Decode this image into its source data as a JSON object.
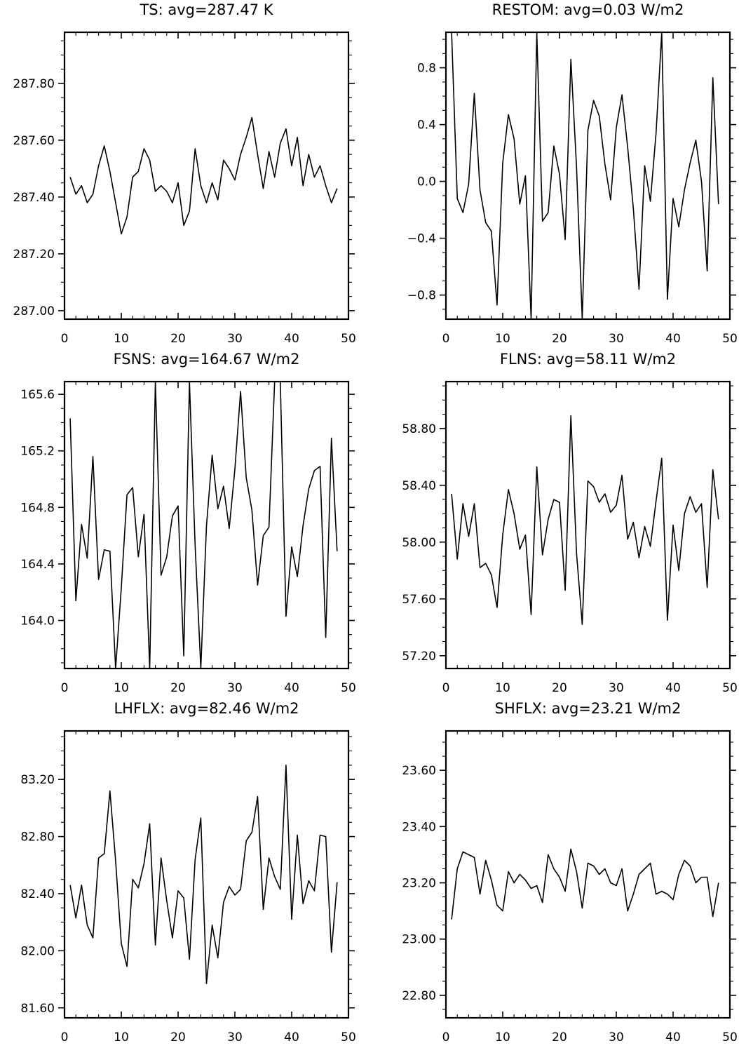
{
  "chart_data": [
    {
      "type": "line",
      "title": "TS: avg=287.47 K",
      "xlim": [
        0,
        50
      ],
      "ylim": [
        286.97,
        287.98
      ],
      "xticks": [
        0,
        10,
        20,
        30,
        40,
        50
      ],
      "xtick_labels": [
        "0",
        "10",
        "20",
        "30",
        "40",
        "50"
      ],
      "yticks": [
        287.0,
        287.2,
        287.4,
        287.6,
        287.8
      ],
      "ytick_labels": [
        "287.00",
        "287.20",
        "287.40",
        "287.60",
        "287.80"
      ],
      "x": [
        1,
        2,
        3,
        4,
        5,
        6,
        7,
        8,
        9,
        10,
        11,
        12,
        13,
        14,
        15,
        16,
        17,
        18,
        19,
        20,
        21,
        22,
        23,
        24,
        25,
        26,
        27,
        28,
        29,
        30,
        31,
        32,
        33,
        34,
        35,
        36,
        37,
        38,
        39,
        40,
        41,
        42,
        43,
        44,
        45,
        46,
        47,
        48
      ],
      "values": [
        287.47,
        287.41,
        287.44,
        287.38,
        287.41,
        287.51,
        287.58,
        287.49,
        287.38,
        287.27,
        287.33,
        287.47,
        287.49,
        287.57,
        287.53,
        287.42,
        287.44,
        287.42,
        287.38,
        287.45,
        287.3,
        287.35,
        287.57,
        287.44,
        287.38,
        287.45,
        287.39,
        287.53,
        287.5,
        287.46,
        287.55,
        287.61,
        287.68,
        287.55,
        287.43,
        287.56,
        287.47,
        287.59,
        287.64,
        287.51,
        287.61,
        287.44,
        287.55,
        287.47,
        287.51,
        287.44,
        287.38,
        287.43
      ]
    },
    {
      "type": "line",
      "title": "RESTOM: avg=0.03 W/m2",
      "xlim": [
        0,
        50
      ],
      "ylim": [
        -0.97,
        1.05
      ],
      "xticks": [
        0,
        10,
        20,
        30,
        40,
        50
      ],
      "xtick_labels": [
        "0",
        "10",
        "20",
        "30",
        "40",
        "50"
      ],
      "yticks": [
        -0.8,
        -0.4,
        0.0,
        0.4,
        0.8
      ],
      "ytick_labels": [
        "−0.8",
        "−0.4",
        "0.0",
        "0.4",
        "0.8"
      ],
      "x": [
        1,
        2,
        3,
        4,
        5,
        6,
        7,
        8,
        9,
        10,
        11,
        12,
        13,
        14,
        15,
        16,
        17,
        18,
        19,
        20,
        21,
        22,
        23,
        24,
        25,
        26,
        27,
        28,
        29,
        30,
        31,
        32,
        33,
        34,
        35,
        36,
        37,
        38,
        39,
        40,
        41,
        42,
        43,
        44,
        45,
        46,
        47,
        48
      ],
      "values": [
        1.05,
        -0.12,
        -0.22,
        -0.02,
        0.62,
        -0.06,
        -0.29,
        -0.35,
        -0.87,
        0.13,
        0.47,
        0.3,
        -0.16,
        0.04,
        -0.97,
        1.05,
        -0.28,
        -0.22,
        0.25,
        0.05,
        -0.41,
        0.86,
        0.1,
        -0.97,
        0.36,
        0.57,
        0.46,
        0.12,
        -0.13,
        0.38,
        0.61,
        0.24,
        -0.19,
        -0.76,
        0.11,
        -0.14,
        0.34,
        1.05,
        -0.83,
        -0.12,
        -0.32,
        -0.06,
        0.13,
        0.29,
        0.0,
        -0.63,
        0.73,
        -0.16
      ]
    },
    {
      "type": "line",
      "title": "FSNS: avg=164.67 W/m2",
      "xlim": [
        0,
        50
      ],
      "ylim": [
        163.66,
        165.69
      ],
      "xticks": [
        0,
        10,
        20,
        30,
        40,
        50
      ],
      "xtick_labels": [
        "0",
        "10",
        "20",
        "30",
        "40",
        "50"
      ],
      "yticks": [
        164.0,
        164.4,
        164.8,
        165.2,
        165.6
      ],
      "ytick_labels": [
        "164.0",
        "164.4",
        "164.8",
        "165.2",
        "165.6"
      ],
      "x": [
        1,
        2,
        3,
        4,
        5,
        6,
        7,
        8,
        9,
        10,
        11,
        12,
        13,
        14,
        15,
        16,
        17,
        18,
        19,
        20,
        21,
        22,
        23,
        24,
        25,
        26,
        27,
        28,
        29,
        30,
        31,
        32,
        33,
        34,
        35,
        36,
        37,
        38,
        39,
        40,
        41,
        42,
        43,
        44,
        45,
        46,
        47,
        48
      ],
      "values": [
        165.43,
        164.14,
        164.68,
        164.44,
        165.16,
        164.29,
        164.5,
        164.49,
        163.66,
        164.23,
        164.89,
        164.94,
        164.45,
        164.75,
        163.66,
        165.69,
        164.32,
        164.45,
        164.74,
        164.81,
        163.75,
        165.69,
        164.53,
        163.66,
        164.67,
        165.17,
        164.79,
        164.95,
        164.65,
        165.07,
        165.62,
        165.01,
        164.78,
        164.25,
        164.6,
        164.66,
        165.69,
        165.69,
        164.03,
        164.52,
        164.31,
        164.67,
        164.93,
        165.06,
        165.09,
        163.88,
        165.29,
        164.49
      ]
    },
    {
      "type": "line",
      "title": "FLNS: avg=58.11 W/m2",
      "xlim": [
        0,
        50
      ],
      "ylim": [
        57.11,
        59.13
      ],
      "xticks": [
        0,
        10,
        20,
        30,
        40,
        50
      ],
      "xtick_labels": [
        "0",
        "10",
        "20",
        "30",
        "40",
        "50"
      ],
      "yticks": [
        57.2,
        57.6,
        58.0,
        58.4,
        58.8
      ],
      "ytick_labels": [
        "57.20",
        "57.60",
        "58.00",
        "58.40",
        "58.80"
      ],
      "x": [
        1,
        2,
        3,
        4,
        5,
        6,
        7,
        8,
        9,
        10,
        11,
        12,
        13,
        14,
        15,
        16,
        17,
        18,
        19,
        20,
        21,
        22,
        23,
        24,
        25,
        26,
        27,
        28,
        29,
        30,
        31,
        32,
        33,
        34,
        35,
        36,
        37,
        38,
        39,
        40,
        41,
        42,
        43,
        44,
        45,
        46,
        47,
        48
      ],
      "values": [
        58.34,
        57.88,
        58.27,
        58.04,
        58.27,
        57.82,
        57.85,
        57.77,
        57.54,
        58.05,
        58.37,
        58.2,
        57.95,
        58.05,
        57.49,
        58.53,
        57.91,
        58.16,
        58.3,
        58.28,
        57.66,
        58.89,
        57.92,
        57.42,
        58.43,
        58.39,
        58.28,
        58.34,
        58.21,
        58.26,
        58.47,
        58.02,
        58.14,
        57.89,
        58.11,
        57.97,
        58.29,
        58.59,
        57.45,
        58.12,
        57.8,
        58.2,
        58.32,
        58.21,
        58.27,
        57.68,
        58.51,
        58.16
      ]
    },
    {
      "type": "line",
      "title": "LHFLX: avg=82.46 W/m2",
      "xlim": [
        0,
        50
      ],
      "ylim": [
        81.53,
        83.54
      ],
      "xticks": [
        0,
        10,
        20,
        30,
        40,
        50
      ],
      "xtick_labels": [
        "0",
        "10",
        "20",
        "30",
        "40",
        "50"
      ],
      "yticks": [
        81.6,
        82.0,
        82.4,
        82.8,
        83.2
      ],
      "ytick_labels": [
        "81.60",
        "82.00",
        "82.40",
        "82.80",
        "83.20"
      ],
      "x": [
        1,
        2,
        3,
        4,
        5,
        6,
        7,
        8,
        9,
        10,
        11,
        12,
        13,
        14,
        15,
        16,
        17,
        18,
        19,
        20,
        21,
        22,
        23,
        24,
        25,
        26,
        27,
        28,
        29,
        30,
        31,
        32,
        33,
        34,
        35,
        36,
        37,
        38,
        39,
        40,
        41,
        42,
        43,
        44,
        45,
        46,
        47,
        48
      ],
      "values": [
        82.46,
        82.23,
        82.46,
        82.18,
        82.09,
        82.65,
        82.68,
        83.12,
        82.63,
        82.05,
        81.89,
        82.5,
        82.44,
        82.61,
        82.89,
        82.04,
        82.65,
        82.35,
        82.09,
        82.42,
        82.37,
        81.94,
        82.64,
        82.93,
        81.77,
        82.18,
        81.95,
        82.34,
        82.45,
        82.39,
        82.43,
        82.77,
        82.83,
        83.08,
        82.29,
        82.65,
        82.52,
        82.43,
        83.3,
        82.22,
        82.81,
        82.33,
        82.49,
        82.42,
        82.81,
        82.8,
        81.99,
        82.48
      ]
    },
    {
      "type": "line",
      "title": "SHFLX: avg=23.21 W/m2",
      "xlim": [
        0,
        50
      ],
      "ylim": [
        22.72,
        23.74
      ],
      "xticks": [
        0,
        10,
        20,
        30,
        40,
        50
      ],
      "xtick_labels": [
        "0",
        "10",
        "20",
        "30",
        "40",
        "50"
      ],
      "yticks": [
        22.8,
        23.0,
        23.2,
        23.4,
        23.6
      ],
      "ytick_labels": [
        "22.80",
        "23.00",
        "23.20",
        "23.40",
        "23.60"
      ],
      "x": [
        1,
        2,
        3,
        4,
        5,
        6,
        7,
        8,
        9,
        10,
        11,
        12,
        13,
        14,
        15,
        16,
        17,
        18,
        19,
        20,
        21,
        22,
        23,
        24,
        25,
        26,
        27,
        28,
        29,
        30,
        31,
        32,
        33,
        34,
        35,
        36,
        37,
        38,
        39,
        40,
        41,
        42,
        43,
        44,
        45,
        46,
        47,
        48
      ],
      "values": [
        23.07,
        23.25,
        23.31,
        23.3,
        23.29,
        23.16,
        23.28,
        23.21,
        23.12,
        23.1,
        23.24,
        23.2,
        23.23,
        23.21,
        23.18,
        23.19,
        23.13,
        23.3,
        23.25,
        23.22,
        23.17,
        23.32,
        23.24,
        23.11,
        23.27,
        23.26,
        23.23,
        23.25,
        23.2,
        23.19,
        23.25,
        23.1,
        23.16,
        23.23,
        23.25,
        23.27,
        23.16,
        23.17,
        23.16,
        23.14,
        23.23,
        23.28,
        23.26,
        23.2,
        23.22,
        23.22,
        23.08,
        23.2
      ]
    }
  ]
}
